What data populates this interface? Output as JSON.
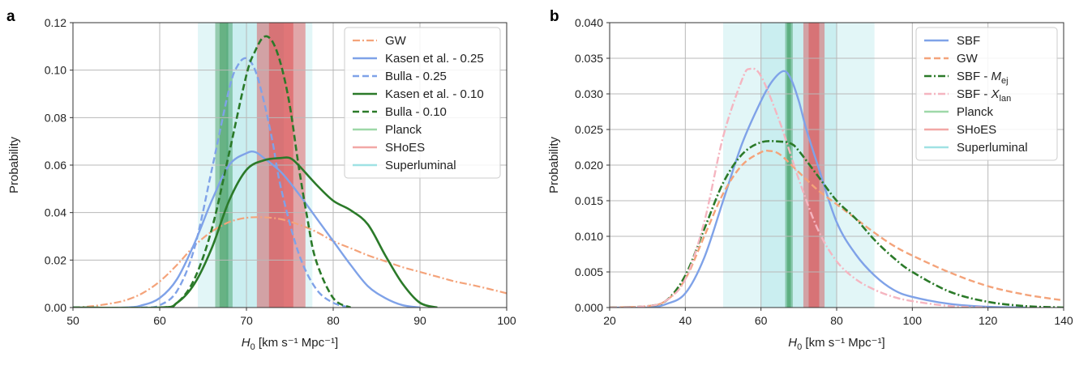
{
  "chart_data": [
    {
      "panel_label": "a",
      "type": "line",
      "xlabel_main": "H",
      "xlabel_sub": "0",
      "xlabel_unit": " [km s⁻¹ Mpc⁻¹]",
      "ylabel": "Probability",
      "xlim": [
        50,
        100
      ],
      "ylim": [
        0,
        0.12
      ],
      "xticks": [
        50,
        60,
        70,
        80,
        90,
        100
      ],
      "yticks": [
        0.0,
        0.02,
        0.04,
        0.06,
        0.08,
        0.1,
        0.12
      ],
      "ytick_decimals": 2,
      "grid": true,
      "legend_position": "top-right",
      "bands": [
        {
          "name": "Superluminal",
          "color": "#6cd3d6",
          "center": 71.0,
          "sigma": 3.3,
          "alpha": 0.2
        },
        {
          "name": "Planck",
          "color": "#1a8a3c",
          "center": 67.4,
          "sigma": 0.5,
          "alpha": 0.38
        },
        {
          "name": "SHoES",
          "color": "#e0282a",
          "center": 74.0,
          "sigma": 1.4,
          "alpha": 0.38
        }
      ],
      "series": [
        {
          "name": "GW",
          "color": "#f4a37a",
          "dash": "9,3,2,3",
          "width": 2.2,
          "x": [
            50,
            52,
            54,
            56,
            58,
            60,
            62,
            64,
            66,
            68,
            70,
            72,
            74,
            76,
            78,
            80,
            82,
            84,
            86,
            88,
            90,
            92,
            94,
            96,
            98,
            100
          ],
          "y": [
            0,
            0.0005,
            0.0015,
            0.003,
            0.006,
            0.011,
            0.018,
            0.026,
            0.032,
            0.036,
            0.0378,
            0.038,
            0.0372,
            0.035,
            0.032,
            0.028,
            0.025,
            0.022,
            0.0195,
            0.017,
            0.015,
            0.013,
            0.011,
            0.0095,
            0.0078,
            0.006
          ]
        },
        {
          "name": "Kasen et al. - 0.25",
          "color": "#7fa2e8",
          "dash": "",
          "width": 2.4,
          "x": [
            50,
            56,
            58,
            60,
            62,
            64,
            66,
            68,
            70,
            71,
            72,
            74,
            76,
            78,
            80,
            82,
            84,
            86,
            88,
            90
          ],
          "y": [
            0,
            0,
            0.001,
            0.004,
            0.012,
            0.027,
            0.045,
            0.06,
            0.065,
            0.0655,
            0.063,
            0.057,
            0.048,
            0.038,
            0.028,
            0.018,
            0.009,
            0.004,
            0.001,
            0
          ]
        },
        {
          "name": "Bulla - 0.25",
          "color": "#7fa2e8",
          "dash": "8,4",
          "width": 2.4,
          "x": [
            50,
            58,
            60,
            62,
            64,
            66,
            68,
            69,
            70,
            71,
            72,
            73,
            74,
            76,
            78,
            80,
            82
          ],
          "y": [
            0,
            0,
            0.001,
            0.007,
            0.025,
            0.058,
            0.092,
            0.102,
            0.105,
            0.1,
            0.087,
            0.07,
            0.05,
            0.023,
            0.008,
            0.002,
            0
          ]
        },
        {
          "name": "Kasen et al. - 0.10",
          "color": "#2b7a29",
          "dash": "",
          "width": 2.6,
          "x": [
            50,
            60,
            62,
            64,
            66,
            68,
            70,
            72,
            74,
            75,
            76,
            78,
            80,
            82,
            84,
            86,
            88,
            90,
            92
          ],
          "y": [
            0,
            0,
            0.002,
            0.01,
            0.025,
            0.045,
            0.058,
            0.062,
            0.063,
            0.063,
            0.06,
            0.052,
            0.045,
            0.041,
            0.035,
            0.022,
            0.01,
            0.002,
            0
          ]
        },
        {
          "name": "Bulla - 0.10",
          "color": "#2b7a29",
          "dash": "8,4",
          "width": 2.6,
          "x": [
            50,
            60,
            62,
            64,
            66,
            68,
            70,
            71,
            72,
            73,
            74,
            75,
            76,
            77,
            78,
            80,
            82
          ],
          "y": [
            0,
            0,
            0.002,
            0.012,
            0.033,
            0.065,
            0.098,
            0.108,
            0.114,
            0.112,
            0.102,
            0.085,
            0.06,
            0.038,
            0.02,
            0.004,
            0
          ]
        }
      ],
      "legend": [
        {
          "label": "GW",
          "color": "#f4a37a",
          "dash": "9,3,2,3",
          "width": 2.2,
          "alpha": 1
        },
        {
          "label": "Kasen et al. - 0.25",
          "color": "#7fa2e8",
          "dash": "",
          "width": 2.4,
          "alpha": 1
        },
        {
          "label": "Bulla - 0.25",
          "color": "#7fa2e8",
          "dash": "8,4",
          "width": 2.4,
          "alpha": 1
        },
        {
          "label": "Kasen et al. - 0.10",
          "color": "#2b7a29",
          "dash": "",
          "width": 2.6,
          "alpha": 1
        },
        {
          "label": "Bulla - 0.10",
          "color": "#2b7a29",
          "dash": "8,4",
          "width": 2.6,
          "alpha": 1
        },
        {
          "label": "Planck",
          "color": "#9ed8a8",
          "dash": "",
          "width": 2.4,
          "alpha": 1
        },
        {
          "label": "SHoES",
          "color": "#f2a8a6",
          "dash": "",
          "width": 2.4,
          "alpha": 1
        },
        {
          "label": "Superluminal",
          "color": "#9fe2e4",
          "dash": "",
          "width": 2.4,
          "alpha": 1
        }
      ]
    },
    {
      "panel_label": "b",
      "type": "line",
      "xlabel_main": "H",
      "xlabel_sub": "0",
      "xlabel_unit": " [km s⁻¹ Mpc⁻¹]",
      "ylabel": "Probability",
      "xlim": [
        20,
        140
      ],
      "ylim": [
        0,
        0.04
      ],
      "xticks": [
        20,
        40,
        60,
        80,
        100,
        120,
        140
      ],
      "yticks": [
        0.0,
        0.005,
        0.01,
        0.015,
        0.02,
        0.025,
        0.03,
        0.035,
        0.04
      ],
      "ytick_decimals": 3,
      "grid": true,
      "legend_position": "top-right",
      "bands": [
        {
          "name": "Superluminal",
          "color": "#6cd3d6",
          "center": 70.0,
          "sigma": 10.0,
          "alpha": 0.2
        },
        {
          "name": "Planck",
          "color": "#1a8a3c",
          "center": 67.4,
          "sigma": 0.5,
          "alpha": 0.38
        },
        {
          "name": "SHoES",
          "color": "#e0282a",
          "center": 74.0,
          "sigma": 1.4,
          "alpha": 0.38
        }
      ],
      "series": [
        {
          "name": "SBF",
          "color": "#7fa2e8",
          "dash": "",
          "width": 2.4,
          "x": [
            20,
            30,
            35,
            40,
            45,
            50,
            55,
            60,
            63,
            66,
            68,
            70,
            72,
            75,
            80,
            85,
            90,
            95,
            100,
            110,
            120,
            130
          ],
          "y": [
            0,
            0,
            0.0005,
            0.002,
            0.007,
            0.015,
            0.023,
            0.029,
            0.0318,
            0.0332,
            0.032,
            0.029,
            0.025,
            0.02,
            0.012,
            0.0075,
            0.0045,
            0.0025,
            0.0015,
            0.0005,
            0.0001,
            0
          ]
        },
        {
          "name": "GW",
          "color": "#f4a37a",
          "dash": "8,4",
          "width": 2.4,
          "x": [
            20,
            30,
            35,
            40,
            45,
            50,
            55,
            60,
            62,
            65,
            70,
            75,
            80,
            85,
            90,
            95,
            100,
            110,
            120,
            130,
            140
          ],
          "y": [
            0,
            0.0002,
            0.001,
            0.004,
            0.01,
            0.016,
            0.02,
            0.0218,
            0.022,
            0.0215,
            0.019,
            0.0165,
            0.0145,
            0.0125,
            0.0105,
            0.0087,
            0.0073,
            0.0049,
            0.003,
            0.0018,
            0.001
          ]
        },
        {
          "name": "SBF - M_ej",
          "color": "#2b7a29",
          "dash": "9,3,2,3",
          "width": 2.6,
          "x": [
            20,
            30,
            35,
            40,
            45,
            50,
            55,
            60,
            65,
            68,
            70,
            75,
            80,
            85,
            90,
            95,
            100,
            110,
            120,
            130,
            140
          ],
          "y": [
            0,
            0.0002,
            0.001,
            0.0045,
            0.011,
            0.0175,
            0.0215,
            0.0232,
            0.0233,
            0.023,
            0.022,
            0.0185,
            0.015,
            0.0125,
            0.0095,
            0.007,
            0.005,
            0.0022,
            0.0008,
            0.0002,
            0
          ]
        },
        {
          "name": "SBF - X_lan",
          "color": "#f5b5c0",
          "dash": "9,3,2,3",
          "width": 2.4,
          "x": [
            20,
            30,
            35,
            40,
            45,
            50,
            55,
            57,
            60,
            65,
            70,
            75,
            80,
            85,
            90,
            95,
            100,
            110,
            120
          ],
          "y": [
            0,
            0.0002,
            0.001,
            0.004,
            0.012,
            0.024,
            0.032,
            0.0335,
            0.0325,
            0.026,
            0.018,
            0.011,
            0.0065,
            0.004,
            0.0025,
            0.0015,
            0.0009,
            0.0002,
            0
          ]
        }
      ],
      "legend": [
        {
          "label": "SBF",
          "color": "#7fa2e8",
          "dash": "",
          "width": 2.4,
          "alpha": 1
        },
        {
          "label": "GW",
          "color": "#f4a37a",
          "dash": "8,4",
          "width": 2.4,
          "alpha": 1
        },
        {
          "label": "SBF - ",
          "label_main": "M",
          "label_sub": "ej",
          "color": "#2b7a29",
          "dash": "9,3,2,3",
          "width": 2.6,
          "alpha": 1
        },
        {
          "label": "SBF - ",
          "label_main": "X",
          "label_sub": "lan",
          "color": "#f5b5c0",
          "dash": "9,3,2,3",
          "width": 2.4,
          "alpha": 1
        },
        {
          "label": "Planck",
          "color": "#9ed8a8",
          "dash": "",
          "width": 2.4,
          "alpha": 1
        },
        {
          "label": "SHoES",
          "color": "#f2a8a6",
          "dash": "",
          "width": 2.4,
          "alpha": 1
        },
        {
          "label": "Superluminal",
          "color": "#9fe2e4",
          "dash": "",
          "width": 2.4,
          "alpha": 1
        }
      ]
    }
  ]
}
